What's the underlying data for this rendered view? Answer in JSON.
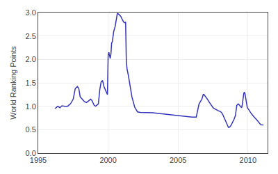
{
  "chart_data": {
    "type": "line",
    "ylabel": "World Ranking Points",
    "color": "#3333bb",
    "grid": true,
    "xlim": [
      1995,
      2011.4
    ],
    "ylim": [
      0,
      3.0
    ],
    "xticks": [
      1995,
      2000,
      2005,
      2010
    ],
    "yticks": [
      {
        "value": 0,
        "label": "0.0"
      },
      0.5,
      {
        "value": 1,
        "label": "1.0"
      },
      1.5,
      {
        "value": 2,
        "label": "2.0"
      },
      2.5,
      {
        "value": 3,
        "label": "3.0"
      }
    ],
    "x": [
      1996.2,
      1996.4,
      1996.55,
      1996.7,
      1996.9,
      1997.1,
      1997.3,
      1997.5,
      1997.65,
      1997.8,
      1997.9,
      1998.0,
      1998.15,
      1998.3,
      1998.45,
      1998.6,
      1998.75,
      1998.85,
      1998.9,
      1999.0,
      1999.1,
      1999.2,
      1999.3,
      1999.4,
      1999.5,
      1999.6,
      1999.65,
      1999.7,
      1999.8,
      1999.85,
      1999.9,
      1999.95,
      2000.0,
      2000.05,
      2000.1,
      2000.15,
      2000.2,
      2000.25,
      2000.3,
      2000.35,
      2000.4,
      2000.5,
      2000.55,
      2000.6,
      2000.65,
      2000.7,
      2000.75,
      2000.8,
      2000.9,
      2001.0,
      2001.1,
      2001.2,
      2001.25,
      2001.3,
      2001.35,
      2001.45,
      2001.55,
      2001.7,
      2001.9,
      2002.1,
      2002.3,
      2002.6,
      2002.9,
      2003.2,
      2003.5,
      2003.8,
      2004.1,
      2004.4,
      2004.7,
      2005.0,
      2005.3,
      2005.6,
      2005.8,
      2006.0,
      2006.3,
      2006.5,
      2006.6,
      2006.7,
      2006.75,
      2006.8,
      2006.85,
      2006.9,
      2006.95,
      2007.0,
      2007.1,
      2007.2,
      2007.3,
      2007.4,
      2007.5,
      2007.6,
      2007.7,
      2007.8,
      2007.9,
      2008.0,
      2008.1,
      2008.2,
      2008.3,
      2008.4,
      2008.5,
      2008.55,
      2008.6,
      2008.65,
      2008.7,
      2008.8,
      2008.9,
      2009.0,
      2009.1,
      2009.15,
      2009.2,
      2009.3,
      2009.35,
      2009.4,
      2009.45,
      2009.5,
      2009.55,
      2009.6,
      2009.65,
      2009.7,
      2009.75,
      2009.8,
      2009.85,
      2009.9,
      2009.95,
      2010.05,
      2010.1,
      2010.15,
      2010.2,
      2010.3,
      2010.4,
      2010.5,
      2010.6,
      2010.7,
      2010.8,
      2010.9,
      2011.0,
      2011.1
    ],
    "values": [
      0.95,
      1.0,
      0.97,
      1.01,
      1.0,
      1.0,
      1.05,
      1.15,
      1.38,
      1.42,
      1.38,
      1.2,
      1.15,
      1.1,
      1.08,
      1.12,
      1.15,
      1.12,
      1.08,
      1.02,
      1.0,
      1.02,
      1.05,
      1.35,
      1.52,
      1.55,
      1.48,
      1.42,
      1.35,
      1.3,
      1.28,
      1.25,
      2.08,
      2.15,
      2.1,
      2.02,
      2.12,
      2.35,
      2.38,
      2.55,
      2.6,
      2.7,
      2.82,
      2.92,
      2.97,
      2.98,
      2.97,
      2.95,
      2.92,
      2.85,
      2.8,
      2.78,
      2.8,
      1.95,
      1.8,
      1.65,
      1.45,
      1.2,
      0.98,
      0.88,
      0.87,
      0.87,
      0.87,
      0.86,
      0.85,
      0.84,
      0.83,
      0.82,
      0.81,
      0.8,
      0.79,
      0.78,
      0.77,
      0.77,
      0.77,
      1.05,
      1.1,
      1.15,
      1.2,
      1.25,
      1.25,
      1.23,
      1.22,
      1.2,
      1.15,
      1.1,
      1.05,
      1.0,
      0.97,
      0.95,
      0.93,
      0.91,
      0.9,
      0.89,
      0.87,
      0.82,
      0.75,
      0.68,
      0.62,
      0.57,
      0.55,
      0.55,
      0.56,
      0.6,
      0.65,
      0.72,
      0.8,
      0.93,
      1.02,
      1.05,
      1.04,
      1.02,
      1.0,
      0.98,
      0.97,
      1.05,
      1.18,
      1.28,
      1.3,
      1.25,
      1.15,
      1.05,
      0.97,
      0.93,
      0.9,
      0.88,
      0.86,
      0.82,
      0.78,
      0.75,
      0.72,
      0.68,
      0.64,
      0.61,
      0.6,
      0.6
    ]
  }
}
